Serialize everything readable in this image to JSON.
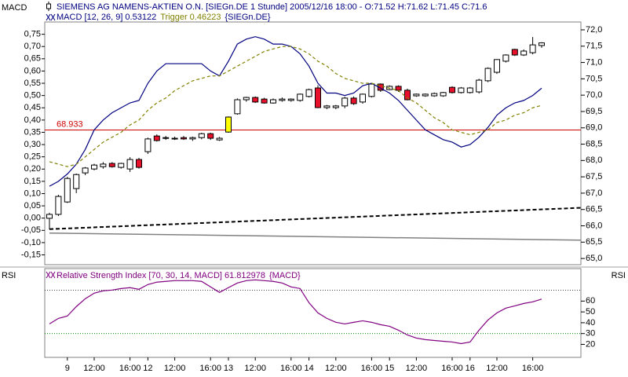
{
  "chart_data": [
    {
      "type": "candlestick",
      "pane_label": "MACD",
      "title": "SIEMENS AG NAMENS-AKTIEN O.N. [SIEGn.DE  1 Stunde] 2005/12/16 18:00 - O:71.52 H:71.62 L:71.45 C:71.6",
      "legend_suffix": "{SIEGn.DE}",
      "up_color": "#ffffff",
      "down_color": "#e8102a",
      "outline_color": "#000000",
      "highlight": {
        "index": 20,
        "color": "#ffff00"
      },
      "open": [
        66.23,
        66.35,
        66.73,
        67.14,
        67.62,
        67.74,
        67.81,
        67.91,
        67.79,
        67.74,
        68.03,
        68.27,
        68.75,
        68.68,
        68.66,
        68.7,
        68.66,
        68.7,
        68.82,
        68.63,
        68.87,
        69.43,
        69.86,
        69.93,
        69.88,
        69.76,
        69.84,
        69.84,
        69.84,
        69.96,
        70.22,
        69.62,
        69.62,
        69.67,
        69.91,
        69.79,
        69.96,
        70.34,
        70.17,
        70.27,
        70.15,
        69.98,
        69.98,
        69.98,
        69.98,
        70.24,
        70.08,
        70.08,
        70.1,
        70.44,
        70.7,
        71.04,
        71.4,
        71.23,
        71.3,
        71.52
      ],
      "high": [
        66.4,
        66.95,
        67.5,
        67.6,
        67.8,
        67.9,
        67.95,
        67.95,
        67.93,
        68.1,
        68.08,
        68.7,
        68.8,
        68.75,
        68.73,
        68.75,
        68.73,
        68.85,
        68.85,
        68.72,
        69.35,
        69.9,
        69.95,
        69.96,
        69.92,
        69.9,
        69.93,
        69.9,
        70.05,
        70.2,
        70.3,
        69.7,
        69.7,
        69.95,
        69.96,
        70.05,
        70.36,
        70.36,
        70.3,
        70.3,
        70.2,
        70.05,
        70.05,
        70.08,
        70.1,
        70.27,
        70.25,
        70.25,
        70.5,
        70.85,
        71.1,
        71.25,
        71.42,
        71.4,
        71.78,
        71.62
      ],
      "low": [
        65.89,
        66.3,
        66.7,
        67.0,
        67.55,
        67.7,
        67.75,
        67.78,
        67.75,
        67.65,
        67.75,
        68.2,
        68.58,
        68.63,
        68.63,
        68.63,
        68.6,
        68.65,
        68.63,
        68.6,
        68.85,
        69.4,
        69.8,
        69.76,
        69.74,
        69.74,
        69.8,
        69.8,
        69.8,
        69.93,
        69.6,
        69.57,
        69.57,
        69.6,
        69.7,
        69.74,
        69.93,
        70.1,
        70.15,
        70.1,
        69.84,
        69.95,
        69.95,
        69.95,
        69.95,
        70.05,
        70.05,
        70.05,
        70.05,
        70.4,
        70.65,
        71.0,
        71.2,
        71.2,
        71.25,
        71.45
      ],
      "close": [
        66.35,
        66.9,
        67.45,
        67.57,
        67.77,
        67.86,
        67.89,
        67.81,
        67.91,
        68.03,
        67.79,
        68.66,
        68.61,
        68.7,
        68.68,
        68.66,
        68.7,
        68.82,
        68.68,
        68.68,
        69.33,
        69.86,
        69.93,
        69.79,
        69.76,
        69.86,
        69.88,
        69.88,
        70.03,
        70.17,
        69.62,
        69.67,
        69.67,
        69.91,
        69.74,
        70.03,
        70.34,
        70.15,
        70.27,
        70.15,
        69.86,
        70.03,
        70.03,
        70.05,
        70.08,
        70.08,
        70.22,
        70.22,
        70.46,
        70.82,
        71.09,
        71.23,
        71.23,
        71.35,
        71.54,
        71.6
      ],
      "series": [
        {
          "name": "MACD [12, 26, 9] 0.53122",
          "color": "#000080",
          "values": [
            0.13,
            0.15,
            0.18,
            0.22,
            0.28,
            0.36,
            0.4,
            0.43,
            0.45,
            0.47,
            0.48,
            0.55,
            0.6,
            0.63,
            0.63,
            0.63,
            0.63,
            0.63,
            0.6,
            0.58,
            0.64,
            0.71,
            0.73,
            0.74,
            0.73,
            0.71,
            0.71,
            0.7,
            0.67,
            0.62,
            0.55,
            0.51,
            0.51,
            0.5,
            0.51,
            0.54,
            0.55,
            0.53,
            0.51,
            0.48,
            0.44,
            0.4,
            0.36,
            0.34,
            0.32,
            0.31,
            0.29,
            0.3,
            0.33,
            0.37,
            0.42,
            0.45,
            0.47,
            0.48,
            0.5,
            0.53
          ]
        },
        {
          "name": "Trigger 0.46223",
          "color": "#808000",
          "dashed": true,
          "values": [
            0.23,
            0.22,
            0.21,
            0.22,
            0.25,
            0.28,
            0.31,
            0.33,
            0.35,
            0.38,
            0.4,
            0.44,
            0.47,
            0.49,
            0.52,
            0.54,
            0.56,
            0.57,
            0.58,
            0.58,
            0.6,
            0.62,
            0.64,
            0.66,
            0.68,
            0.69,
            0.7,
            0.7,
            0.69,
            0.67,
            0.64,
            0.62,
            0.59,
            0.57,
            0.56,
            0.55,
            0.55,
            0.54,
            0.53,
            0.52,
            0.49,
            0.47,
            0.44,
            0.41,
            0.39,
            0.36,
            0.35,
            0.34,
            0.35,
            0.36,
            0.39,
            0.4,
            0.42,
            0.43,
            0.45,
            0.46
          ]
        }
      ],
      "lines": [
        {
          "color": "#000000",
          "dashed": true,
          "values": [
            -0.045,
            0.042
          ]
        },
        {
          "color": "#808080",
          "values": [
            -0.061,
            -0.09
          ]
        }
      ],
      "hline": {
        "value": 68.933,
        "color": "#d00000",
        "axis": "y2"
      },
      "ylim": [
        -0.19,
        0.8
      ],
      "yticks": [
        {
          "value": 0.75,
          "label": "0,75"
        },
        {
          "value": 0.7,
          "label": "0,70"
        },
        {
          "value": 0.65,
          "label": "0,65"
        },
        {
          "value": 0.6,
          "label": "0,60"
        },
        {
          "value": 0.55,
          "label": "0,55"
        },
        {
          "value": 0.5,
          "label": "0,50"
        },
        {
          "value": 0.45,
          "label": "0,45"
        },
        {
          "value": 0.4,
          "label": "0,40"
        },
        {
          "value": 0.35,
          "label": "0,35"
        },
        {
          "value": 0.3,
          "label": "0,30"
        },
        {
          "value": 0.25,
          "label": "0,25"
        },
        {
          "value": 0.2,
          "label": "0,20"
        },
        {
          "value": 0.15,
          "label": "0,15"
        },
        {
          "value": 0.1,
          "label": "0,10"
        },
        {
          "value": 0.05,
          "label": "0,05"
        },
        {
          "value": 0,
          "label": "0,00"
        },
        {
          "value": -0.05,
          "label": "-0,05"
        },
        {
          "value": -0.1,
          "label": "-0,10"
        },
        {
          "value": -0.15,
          "label": "-0,15"
        }
      ],
      "y2lim": [
        64.81,
        72.24
      ],
      "y2ticks": [
        {
          "value": 72,
          "label": "72,0"
        },
        {
          "value": 71.5,
          "label": "71,5"
        },
        {
          "value": 71,
          "label": "71,0"
        },
        {
          "value": 70.5,
          "label": "70,5"
        },
        {
          "value": 70,
          "label": "70,0"
        },
        {
          "value": 69.5,
          "label": "69,5"
        },
        {
          "value": 69,
          "label": "69,0"
        },
        {
          "value": 68.5,
          "label": "68,5"
        },
        {
          "value": 68,
          "label": "68,0"
        },
        {
          "value": 67.5,
          "label": "67,5"
        },
        {
          "value": 67,
          "label": "67,0"
        },
        {
          "value": 66.5,
          "label": "66,5"
        },
        {
          "value": 66,
          "label": "66,0"
        },
        {
          "value": 65.5,
          "label": "65,5"
        },
        {
          "value": 65,
          "label": "65,0"
        }
      ]
    },
    {
      "type": "line",
      "pane_label": "RSI",
      "legend_suffix": "{MACD}",
      "categories": [
        null,
        null,
        "9",
        null,
        null,
        "12:00",
        null,
        null,
        null,
        "16:00",
        null,
        "12",
        null,
        null,
        "12:00",
        null,
        null,
        null,
        "16:00",
        null,
        "13",
        null,
        null,
        "12:00",
        null,
        null,
        null,
        "16:00",
        null,
        "14",
        null,
        null,
        "12:00",
        null,
        null,
        null,
        "16:00",
        null,
        "15",
        null,
        null,
        "12:00",
        null,
        null,
        null,
        "16:00",
        null,
        "16",
        null,
        null,
        "12:00",
        null,
        null,
        null,
        "16:00",
        null
      ],
      "series": [
        {
          "name": "Relative Strength Index [70, 30, 14, MACD] 61.812978",
          "color": "#800080",
          "values": [
            38.9,
            44,
            46.2,
            54.9,
            62.2,
            67.3,
            69.5,
            70.2,
            71.6,
            72.4,
            70.9,
            75.3,
            77.5,
            78.2,
            78.9,
            78.9,
            78.9,
            78.2,
            73.1,
            68,
            72.4,
            76.7,
            78.9,
            79.6,
            78.9,
            78.2,
            76.7,
            73.1,
            71.6,
            58.5,
            49.1,
            44,
            40.4,
            38.9,
            40.4,
            41.8,
            40.4,
            38.2,
            36.7,
            33.1,
            28.7,
            25.8,
            24.4,
            23.6,
            22.9,
            22.2,
            20.7,
            22.2,
            33.1,
            42.5,
            49.1,
            53.5,
            55.6,
            57.8,
            59.3,
            61.8
          ]
        }
      ],
      "levels": [
        {
          "value": 70,
          "color": "#404040"
        },
        {
          "value": 30,
          "color": "#008000"
        }
      ],
      "y2lim": [
        8,
        90
      ],
      "y2ticks": [
        60,
        50,
        40,
        30,
        20
      ]
    }
  ]
}
